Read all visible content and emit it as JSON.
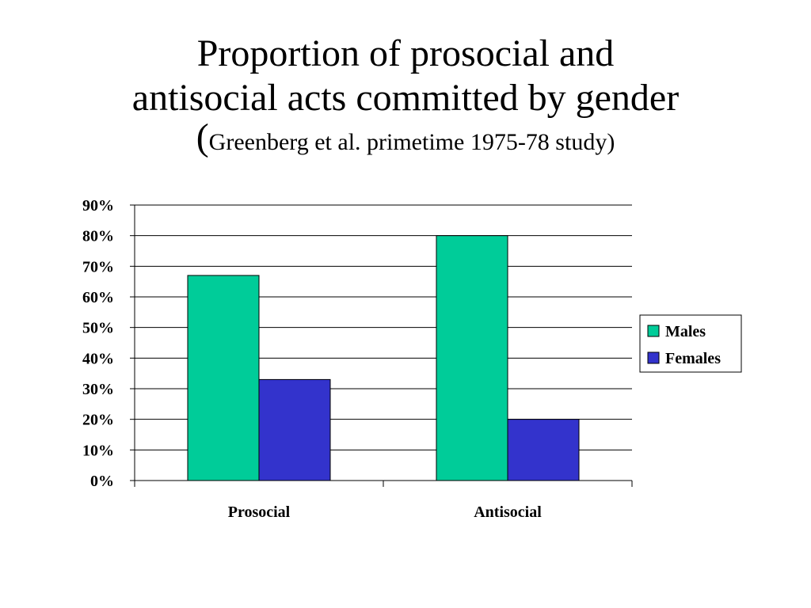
{
  "title": {
    "line1": "Proportion of prosocial and",
    "line2": "antisocial acts committed by gender",
    "line3_open": "(",
    "line3_text": "Greenberg et al. primetime 1975-78 study)"
  },
  "chart_data": {
    "type": "bar",
    "categories": [
      "Prosocial",
      "Antisocial"
    ],
    "series": [
      {
        "name": "Males",
        "values": [
          67,
          80
        ],
        "color": "#00CC99"
      },
      {
        "name": "Females",
        "values": [
          33,
          20
        ],
        "color": "#3333CC"
      }
    ],
    "ylim": [
      0,
      90
    ],
    "yticks": [
      0,
      10,
      20,
      30,
      40,
      50,
      60,
      70,
      80,
      90
    ],
    "ytick_suffix": "%",
    "grid": true,
    "legend_position": "right"
  }
}
